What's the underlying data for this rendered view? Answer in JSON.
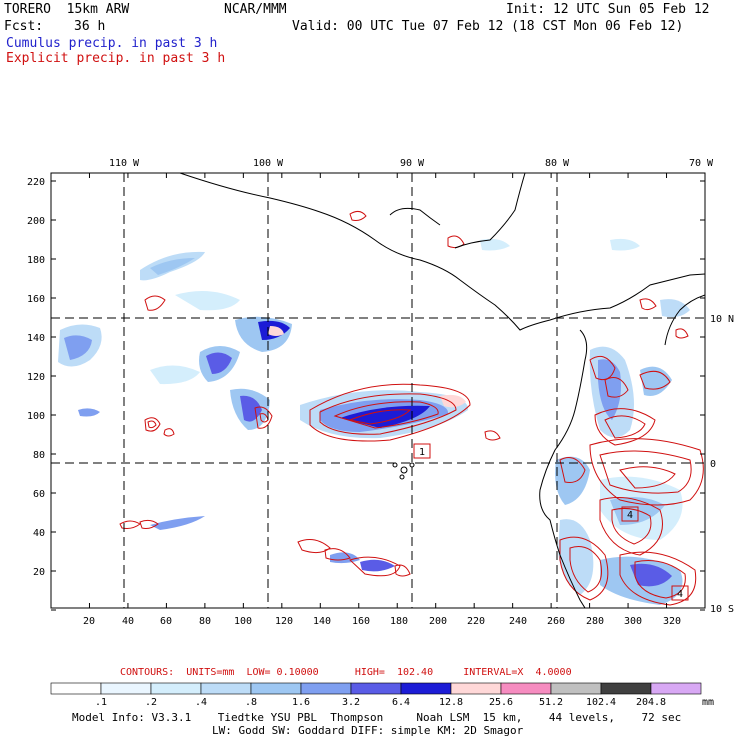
{
  "header": {
    "model": "TORERO  15km ARW",
    "org": "NCAR/MMM",
    "init": "Init: 12 UTC Sun 05 Feb 12",
    "fcst_label": "Fcst:",
    "fcst_value": "36 h",
    "valid": "Valid: 00 UTC Tue 07 Feb 12 (18 CST Mon 06 Feb 12)",
    "line_cumulus": "Cumulus precip. in past 3 h",
    "line_explicit": "Explicit precip. in past 3 h"
  },
  "map": {
    "lon_labels": [
      "110 W",
      "100 W",
      "90 W",
      "80 W",
      "70 W"
    ],
    "lat_labels": [
      "10 N",
      "0",
      "10 S"
    ],
    "y_ticks": [
      "220",
      "200",
      "180",
      "160",
      "140",
      "120",
      "100",
      "80",
      "60",
      "40",
      "20"
    ],
    "x_ticks": [
      "20",
      "40",
      "60",
      "80",
      "100",
      "120",
      "140",
      "160",
      "180",
      "200",
      "220",
      "240",
      "260",
      "280",
      "300",
      "320"
    ],
    "box_labels": [
      "1",
      "4",
      "4"
    ]
  },
  "contours": {
    "title": "CONTOURS:",
    "units": "UNITS=mm",
    "low": "LOW= 0.10000",
    "high": "HIGH=  102.40",
    "interval": "INTERVAL=X  4.0000"
  },
  "colorbar": {
    "levels": [
      ".1",
      ".2",
      ".4",
      ".8",
      "1.6",
      "3.2",
      "6.4",
      "12.8",
      "25.6",
      "51.2",
      "102.4",
      "204.8"
    ],
    "unit": "mm",
    "colors": [
      "#ffffff",
      "#eaf6ff",
      "#d4eefc",
      "#bddcf7",
      "#9ec7f2",
      "#7f9ff0",
      "#5a5ce6",
      "#1c1cd6",
      "#ffd8d8",
      "#f68cc0",
      "#c0c0c0",
      "#404040",
      "#d8a8f4"
    ]
  },
  "footer": {
    "line1": "Model Info: V3.3.1    Tiedtke YSU PBL  Thompson     Noah LSM  15 km,    44 levels,    72 sec",
    "line2": "LW: Godd SW: Goddard DIFF: simple KM: 2D Smagor"
  }
}
